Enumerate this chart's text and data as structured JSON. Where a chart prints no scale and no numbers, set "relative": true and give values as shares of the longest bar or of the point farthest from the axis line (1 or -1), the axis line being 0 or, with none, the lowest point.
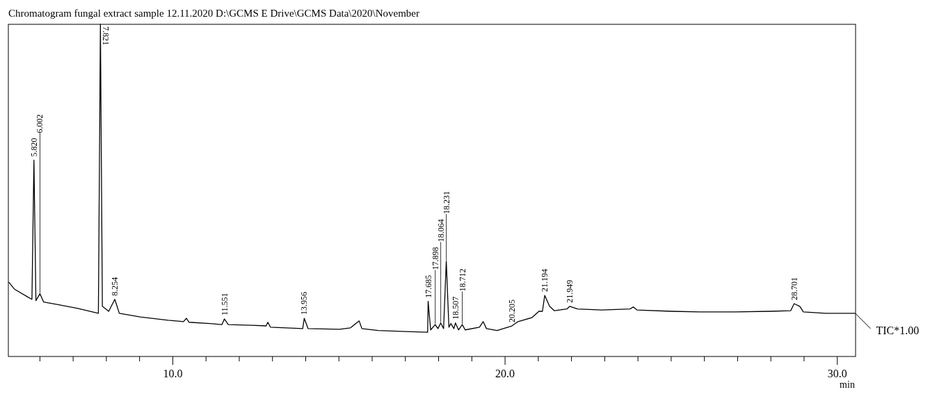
{
  "chart_data": {
    "type": "line",
    "title": "Chromatogram fungal extract sample  12.11.2020 D:\\GCMS E Drive\\GCMS Data\\2020\\November",
    "xlabel": "min",
    "relative": true,
    "grid": false,
    "marker": "none",
    "line_style": "solid",
    "xlim": [
      5.05,
      30.55
    ],
    "xticks": [
      {
        "value": 6,
        "label": null
      },
      {
        "value": 7,
        "label": null
      },
      {
        "value": 8,
        "label": null
      },
      {
        "value": 9,
        "label": null
      },
      {
        "value": 10,
        "label": "10.0"
      },
      {
        "value": 11,
        "label": null
      },
      {
        "value": 12,
        "label": null
      },
      {
        "value": 13,
        "label": null
      },
      {
        "value": 14,
        "label": null
      },
      {
        "value": 15,
        "label": null
      },
      {
        "value": 16,
        "label": null
      },
      {
        "value": 17,
        "label": null
      },
      {
        "value": 18,
        "label": null
      },
      {
        "value": 19,
        "label": null
      },
      {
        "value": 20,
        "label": "20.0"
      },
      {
        "value": 21,
        "label": null
      },
      {
        "value": 22,
        "label": null
      },
      {
        "value": 23,
        "label": null
      },
      {
        "value": 24,
        "label": null
      },
      {
        "value": 25,
        "label": null
      },
      {
        "value": 26,
        "label": null
      },
      {
        "value": 27,
        "label": null
      },
      {
        "value": 28,
        "label": null
      },
      {
        "value": 29,
        "label": null
      },
      {
        "value": 30,
        "label": "30.0"
      }
    ],
    "series": [
      {
        "color": "#000000",
        "x": [
          5.06,
          5.23,
          5.65,
          5.76,
          5.82,
          5.88,
          6.002,
          6.11,
          6.49,
          7.12,
          7.76,
          7.821,
          7.88,
          8.07,
          8.254,
          8.39,
          9.02,
          9.86,
          10.32,
          10.41,
          10.49,
          11.12,
          11.48,
          11.551,
          11.67,
          12.39,
          12.81,
          12.86,
          12.94,
          13.91,
          13.956,
          14.07,
          15.02,
          15.34,
          15.61,
          15.69,
          16.18,
          17.02,
          17.67,
          17.685,
          17.76,
          17.898,
          17.98,
          18.064,
          18.15,
          18.231,
          18.31,
          18.37,
          18.46,
          18.507,
          18.6,
          18.712,
          18.8,
          19.23,
          19.34,
          19.44,
          19.76,
          20.205,
          20.39,
          20.81,
          21.02,
          21.125,
          21.194,
          21.34,
          21.48,
          21.86,
          21.949,
          22.18,
          22.91,
          23.76,
          23.86,
          23.97,
          25.02,
          25.86,
          26.91,
          27.97,
          28.6,
          28.701,
          28.87,
          28.98,
          29.65,
          30.54
        ],
        "values": [
          0.224,
          0.203,
          0.178,
          0.172,
          0.591,
          0.168,
          0.189,
          0.164,
          0.157,
          0.145,
          0.13,
          1,
          0.151,
          0.136,
          0.172,
          0.13,
          0.119,
          0.109,
          0.105,
          0.115,
          0.103,
          0.099,
          0.096,
          0.113,
          0.096,
          0.094,
          0.092,
          0.103,
          0.088,
          0.084,
          0.115,
          0.084,
          0.082,
          0.086,
          0.107,
          0.084,
          0.078,
          0.075,
          0.073,
          0.166,
          0.08,
          0.096,
          0.084,
          0.101,
          0.084,
          0.287,
          0.088,
          0.099,
          0.084,
          0.101,
          0.08,
          0.096,
          0.08,
          0.088,
          0.105,
          0.084,
          0.078,
          0.092,
          0.105,
          0.117,
          0.136,
          0.136,
          0.184,
          0.151,
          0.138,
          0.143,
          0.151,
          0.143,
          0.14,
          0.143,
          0.149,
          0.14,
          0.136,
          0.134,
          0.134,
          0.136,
          0.138,
          0.159,
          0.151,
          0.134,
          0.13,
          0.13
        ]
      }
    ],
    "annotations": [
      {
        "text": "5.820",
        "x": 5.82,
        "y": 0.591
      },
      {
        "text": "6.002",
        "x": 6.002,
        "y": 0.189
      },
      {
        "text": "7.821",
        "x": 7.821,
        "y": 1
      },
      {
        "text": "8.254",
        "x": 8.254,
        "y": 0.172
      },
      {
        "text": "11.551",
        "x": 11.551,
        "y": 0.113
      },
      {
        "text": "13.956",
        "x": 13.956,
        "y": 0.115
      },
      {
        "text": "17.685",
        "x": 17.685,
        "y": 0.166
      },
      {
        "text": "17.898",
        "x": 17.898,
        "y": 0.096
      },
      {
        "text": "18.064",
        "x": 18.064,
        "y": 0.101
      },
      {
        "text": "18.231",
        "x": 18.231,
        "y": 0.287
      },
      {
        "text": "18.507",
        "x": 18.507,
        "y": 0.101
      },
      {
        "text": "18.712",
        "x": 18.712,
        "y": 0.096
      },
      {
        "text": "20.205",
        "x": 20.205,
        "y": 0.092
      },
      {
        "text": "21.194",
        "x": 21.194,
        "y": 0.184
      },
      {
        "text": "21.949",
        "x": 21.949,
        "y": 0.151
      },
      {
        "text": "28.701",
        "x": 28.701,
        "y": 0.159
      },
      "TIC*1.00"
    ]
  }
}
